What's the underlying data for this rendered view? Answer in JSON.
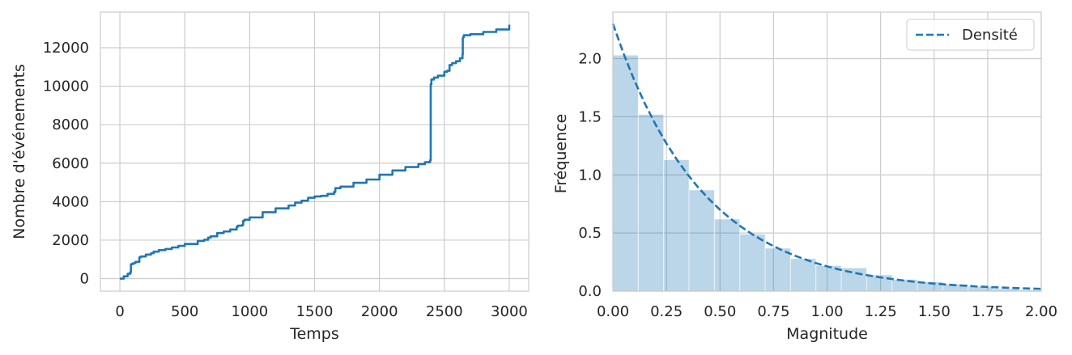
{
  "chart_data": [
    {
      "type": "line",
      "xlabel": "Temps",
      "ylabel": "Nombre d'événements",
      "xlim": [
        -150,
        3150
      ],
      "ylim": [
        -650,
        13850
      ],
      "xticks": [
        0,
        500,
        1000,
        1500,
        2000,
        2500,
        3000
      ],
      "xtick_labels": [
        "0",
        "500",
        "1000",
        "1500",
        "2000",
        "2500",
        "3000"
      ],
      "yticks": [
        0,
        2000,
        4000,
        6000,
        8000,
        10000,
        12000
      ],
      "ytick_labels": [
        "0",
        "2000",
        "4000",
        "6000",
        "8000",
        "10000",
        "12000"
      ],
      "grid": true,
      "color": "#1f77b4",
      "series": [
        {
          "x": [
            0,
            30,
            60,
            80,
            85,
            100,
            120,
            150,
            160,
            200,
            240,
            260,
            300,
            350,
            400,
            450,
            500,
            600,
            650,
            680,
            700,
            750,
            800,
            850,
            900,
            910,
            940,
            950,
            960,
            1000,
            1100,
            1200,
            1300,
            1350,
            1400,
            1450,
            1500,
            1550,
            1600,
            1650,
            1660,
            1700,
            1800,
            1900,
            2000,
            2100,
            2200,
            2300,
            2350,
            2390,
            2395,
            2400,
            2420,
            2450,
            2500,
            2520,
            2540,
            2560,
            2590,
            2620,
            2640,
            2642,
            2645,
            2650,
            2700,
            2800,
            2900,
            3000
          ],
          "y": [
            0,
            120,
            250,
            330,
            750,
            800,
            870,
            1100,
            1150,
            1250,
            1320,
            1400,
            1480,
            1540,
            1620,
            1700,
            1800,
            1960,
            2020,
            2130,
            2200,
            2370,
            2450,
            2550,
            2700,
            2750,
            2780,
            3000,
            3060,
            3180,
            3450,
            3650,
            3800,
            3950,
            4050,
            4200,
            4270,
            4300,
            4400,
            4500,
            4700,
            4780,
            4980,
            5150,
            5400,
            5620,
            5800,
            5950,
            6050,
            6150,
            10100,
            10350,
            10450,
            10550,
            10750,
            10800,
            11100,
            11200,
            11300,
            11450,
            11650,
            12500,
            12550,
            12650,
            12700,
            12820,
            12950,
            13200
          ]
        }
      ]
    },
    {
      "type": "bar",
      "xlabel": "Magnitude",
      "ylabel": "Fréquence",
      "xlim": [
        0,
        2.0
      ],
      "ylim": [
        0,
        2.4
      ],
      "xticks": [
        0,
        0.25,
        0.5,
        0.75,
        1.0,
        1.25,
        1.5,
        1.75,
        2.0
      ],
      "xtick_labels": [
        "0.00",
        "0.25",
        "0.50",
        "0.75",
        "1.00",
        "1.25",
        "1.50",
        "1.75",
        "2.00"
      ],
      "yticks": [
        0,
        0.5,
        1.0,
        1.5,
        2.0
      ],
      "ytick_labels": [
        "0.0",
        "0.5",
        "1.0",
        "1.5",
        "2.0"
      ],
      "grid": true,
      "bin_width": 0.1185,
      "bins": [
        0,
        0.1185,
        0.237,
        0.3555,
        0.474,
        0.5925,
        0.711,
        0.8295,
        0.948,
        1.0665,
        1.185,
        1.3035,
        1.422,
        1.5405,
        1.659,
        1.7775,
        1.896
      ],
      "values": [
        2.03,
        1.52,
        1.13,
        0.87,
        0.62,
        0.49,
        0.37,
        0.28,
        0.22,
        0.2,
        0.14,
        0.1,
        0.08,
        0.06,
        0.04,
        0.02,
        0.01
      ],
      "bar_color": "#1f77b4",
      "bar_alpha": 0.3,
      "density_curve": {
        "name": "Densité",
        "style": "dashed",
        "color": "#1f77b4",
        "x": [
          0,
          0.05,
          0.1,
          0.15,
          0.2,
          0.25,
          0.3,
          0.35,
          0.4,
          0.45,
          0.5,
          0.55,
          0.6,
          0.65,
          0.7,
          0.75,
          0.8,
          0.85,
          0.9,
          0.95,
          1.0,
          1.05,
          1.1,
          1.15,
          1.2,
          1.25,
          1.3,
          1.35,
          1.4,
          1.45,
          1.5,
          1.55,
          1.6,
          1.65,
          1.7,
          1.75,
          1.8,
          1.85,
          1.9,
          1.95,
          2.0
        ],
        "y": [
          2.3,
          2.042,
          1.813,
          1.61,
          1.43,
          1.269,
          1.127,
          1.001,
          0.888,
          0.789,
          0.7,
          0.622,
          0.552,
          0.49,
          0.435,
          0.387,
          0.343,
          0.305,
          0.271,
          0.24,
          0.213,
          0.189,
          0.168,
          0.149,
          0.133,
          0.118,
          0.105,
          0.093,
          0.082,
          0.073,
          0.065,
          0.058,
          0.051,
          0.046,
          0.04,
          0.036,
          0.032,
          0.028,
          0.025,
          0.022,
          0.02
        ]
      },
      "legend": {
        "entries": [
          "Densité"
        ],
        "placement": "top-right"
      }
    }
  ]
}
